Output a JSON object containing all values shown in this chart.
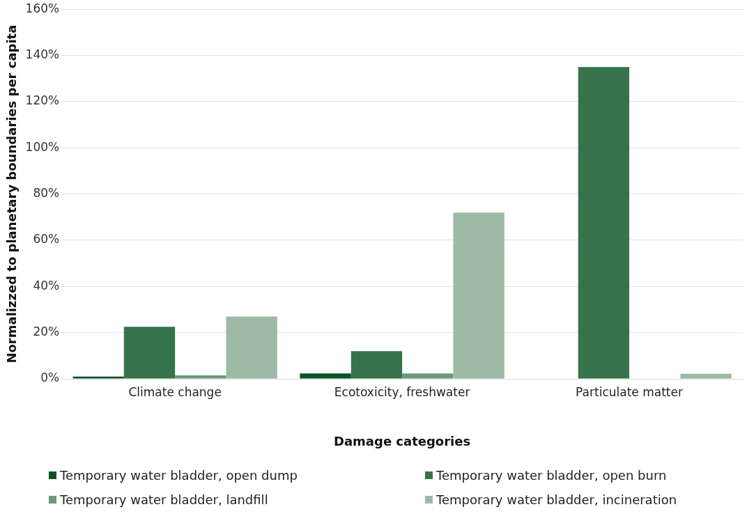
{
  "chart_data": {
    "type": "bar",
    "xlabel": "Damage categories",
    "ylabel": "Normalizzed to planetary boundaries per capita",
    "categories": [
      "Climate change",
      "Ecotoxicity, freshwater",
      "Particulate matter"
    ],
    "series": [
      {
        "name": "Temporary water bladder, open dump",
        "color": "#0b5225",
        "values": [
          1,
          2.3,
          0
        ]
      },
      {
        "name": "Temporary water bladder, open burn",
        "color": "#36734d",
        "values": [
          22.5,
          12,
          135
        ]
      },
      {
        "name": "Temporary water bladder, landfill",
        "color": "#6b987a",
        "values": [
          1.5,
          2.3,
          null
        ]
      },
      {
        "name": "Temporary water bladder, incineration",
        "color": "#9dbaa5",
        "values": [
          27,
          72,
          2.2
        ]
      }
    ],
    "ylim": [
      0,
      160
    ],
    "yticks": [
      {
        "value": 0,
        "label": "0%"
      },
      {
        "value": 20,
        "label": "20%"
      },
      {
        "value": 40,
        "label": "40%"
      },
      {
        "value": 60,
        "label": "60%"
      },
      {
        "value": 80,
        "label": "80%"
      },
      {
        "value": 100,
        "label": "100%"
      },
      {
        "value": 120,
        "label": "120%"
      },
      {
        "value": 140,
        "label": "140%"
      },
      {
        "value": 160,
        "label": "160%"
      }
    ],
    "grid": "y",
    "legend": "bottom"
  }
}
